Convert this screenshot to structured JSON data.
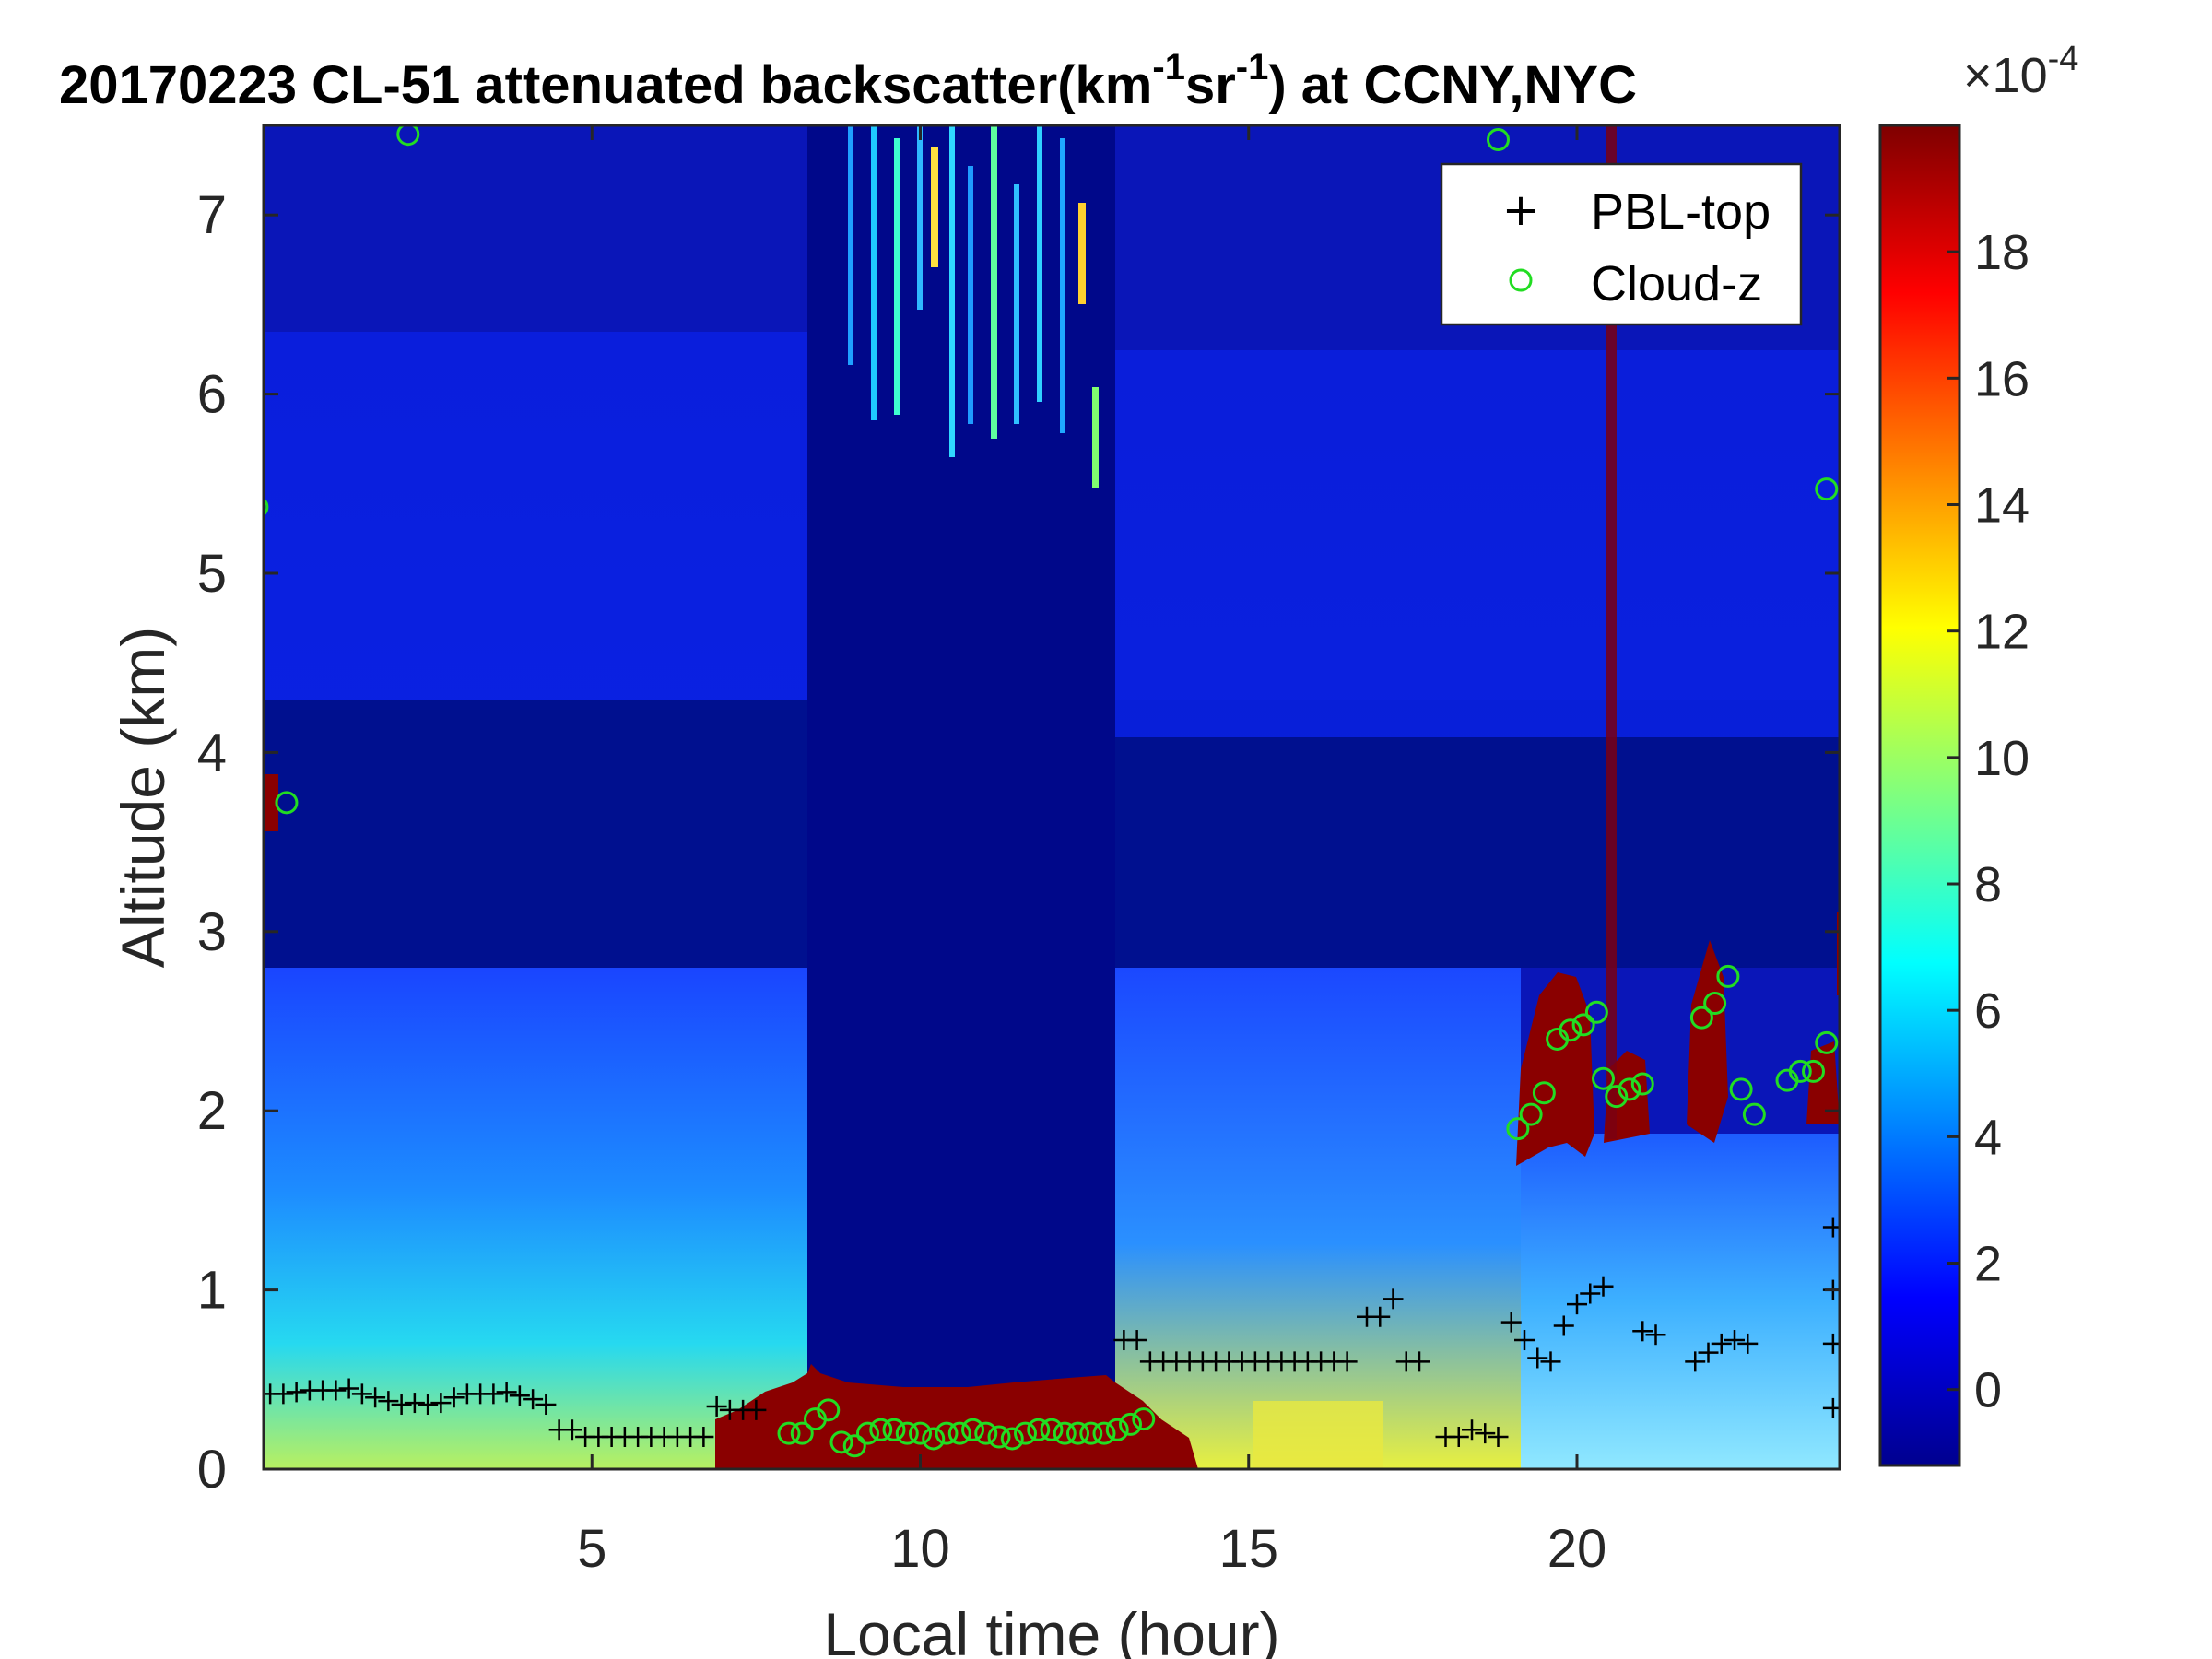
{
  "chart_data": {
    "type": "heatmap",
    "title_parts": {
      "main": "20170223  CL-51 attenuated backscatter(km",
      "sup1": "-1",
      "mid": "sr",
      "sup2": "-1",
      "end": ") at CCNY,NYC"
    },
    "xlabel": "Local time (hour)",
    "ylabel": "Altitude (km)",
    "xlim": [
      0,
      24
    ],
    "ylim": [
      0,
      7.5
    ],
    "x_ticks": [
      "5",
      "10",
      "15",
      "20"
    ],
    "y_ticks": [
      "0",
      "1",
      "2",
      "3",
      "4",
      "5",
      "6",
      "7"
    ],
    "colorbar": {
      "range": [
        -1.2,
        20
      ],
      "ticks": [
        "0",
        "2",
        "4",
        "6",
        "8",
        "10",
        "12",
        "14",
        "16",
        "18"
      ],
      "exponent_base": "10",
      "exponent": "-4"
    },
    "legend": {
      "placement": "top-right",
      "entries": [
        {
          "name": "PBL-top",
          "marker": "+",
          "color": "#000000"
        },
        {
          "name": "Cloud-z",
          "marker": "o",
          "color": "#22dd22"
        }
      ]
    },
    "series": [
      {
        "name": "PBL-top",
        "points": [
          [
            0.1,
            0.42
          ],
          [
            0.3,
            0.42
          ],
          [
            0.5,
            0.43
          ],
          [
            0.7,
            0.44
          ],
          [
            0.9,
            0.44
          ],
          [
            1.1,
            0.44
          ],
          [
            1.3,
            0.45
          ],
          [
            1.5,
            0.42
          ],
          [
            1.7,
            0.4
          ],
          [
            1.9,
            0.38
          ],
          [
            2.1,
            0.36
          ],
          [
            2.3,
            0.37
          ],
          [
            2.5,
            0.36
          ],
          [
            2.7,
            0.37
          ],
          [
            2.9,
            0.4
          ],
          [
            3.1,
            0.42
          ],
          [
            3.3,
            0.42
          ],
          [
            3.5,
            0.42
          ],
          [
            3.7,
            0.43
          ],
          [
            3.9,
            0.41
          ],
          [
            4.1,
            0.39
          ],
          [
            4.3,
            0.36
          ],
          [
            4.5,
            0.22
          ],
          [
            4.7,
            0.22
          ],
          [
            4.9,
            0.18
          ],
          [
            5.1,
            0.18
          ],
          [
            5.3,
            0.18
          ],
          [
            5.5,
            0.18
          ],
          [
            5.7,
            0.18
          ],
          [
            5.9,
            0.18
          ],
          [
            6.1,
            0.18
          ],
          [
            6.3,
            0.18
          ],
          [
            6.5,
            0.18
          ],
          [
            6.7,
            0.18
          ],
          [
            6.9,
            0.35
          ],
          [
            7.1,
            0.33
          ],
          [
            7.3,
            0.33
          ],
          [
            7.5,
            0.33
          ],
          [
            13.1,
            0.72
          ],
          [
            13.3,
            0.72
          ],
          [
            13.5,
            0.6
          ],
          [
            13.7,
            0.6
          ],
          [
            13.9,
            0.6
          ],
          [
            14.1,
            0.6
          ],
          [
            14.3,
            0.6
          ],
          [
            14.5,
            0.6
          ],
          [
            14.7,
            0.6
          ],
          [
            14.9,
            0.6
          ],
          [
            15.1,
            0.6
          ],
          [
            15.3,
            0.6
          ],
          [
            15.5,
            0.6
          ],
          [
            15.7,
            0.6
          ],
          [
            15.9,
            0.6
          ],
          [
            16.1,
            0.6
          ],
          [
            16.3,
            0.6
          ],
          [
            16.5,
            0.6
          ],
          [
            16.8,
            0.85
          ],
          [
            17.0,
            0.85
          ],
          [
            17.2,
            0.95
          ],
          [
            17.4,
            0.6
          ],
          [
            17.6,
            0.6
          ],
          [
            18.0,
            0.18
          ],
          [
            18.2,
            0.18
          ],
          [
            18.4,
            0.22
          ],
          [
            18.6,
            0.2
          ],
          [
            18.8,
            0.18
          ],
          [
            19.0,
            0.82
          ],
          [
            19.2,
            0.72
          ],
          [
            19.4,
            0.62
          ],
          [
            19.6,
            0.6
          ],
          [
            19.8,
            0.8
          ],
          [
            20.0,
            0.92
          ],
          [
            20.2,
            0.98
          ],
          [
            20.4,
            1.02
          ],
          [
            21.0,
            0.77
          ],
          [
            21.2,
            0.75
          ],
          [
            21.8,
            0.6
          ],
          [
            22.0,
            0.65
          ],
          [
            22.2,
            0.7
          ],
          [
            22.4,
            0.72
          ],
          [
            22.6,
            0.7
          ],
          [
            23.9,
            0.34
          ],
          [
            23.9,
            0.7
          ],
          [
            23.9,
            1.0
          ],
          [
            23.9,
            1.35
          ]
        ]
      },
      {
        "name": "Cloud-z",
        "points": [
          [
            0.35,
            3.72
          ],
          [
            2.2,
            7.45
          ],
          [
            18.8,
            7.42
          ],
          [
            8.0,
            0.2
          ],
          [
            8.2,
            0.2
          ],
          [
            8.4,
            0.28
          ],
          [
            8.6,
            0.33
          ],
          [
            8.8,
            0.15
          ],
          [
            9.0,
            0.13
          ],
          [
            9.2,
            0.2
          ],
          [
            9.4,
            0.22
          ],
          [
            9.6,
            0.22
          ],
          [
            9.8,
            0.2
          ],
          [
            10.0,
            0.2
          ],
          [
            10.2,
            0.17
          ],
          [
            10.4,
            0.2
          ],
          [
            10.6,
            0.2
          ],
          [
            10.8,
            0.22
          ],
          [
            11.0,
            0.2
          ],
          [
            11.2,
            0.18
          ],
          [
            11.4,
            0.17
          ],
          [
            11.6,
            0.2
          ],
          [
            11.8,
            0.22
          ],
          [
            12.0,
            0.22
          ],
          [
            12.2,
            0.2
          ],
          [
            12.4,
            0.2
          ],
          [
            12.6,
            0.2
          ],
          [
            12.8,
            0.2
          ],
          [
            13.0,
            0.22
          ],
          [
            13.2,
            0.25
          ],
          [
            13.4,
            0.28
          ],
          [
            19.1,
            1.9
          ],
          [
            19.3,
            1.98
          ],
          [
            19.5,
            2.1
          ],
          [
            19.7,
            2.4
          ],
          [
            19.9,
            2.45
          ],
          [
            20.1,
            2.48
          ],
          [
            20.3,
            2.55
          ],
          [
            20.4,
            2.18
          ],
          [
            20.6,
            2.08
          ],
          [
            20.8,
            2.12
          ],
          [
            21.0,
            2.15
          ],
          [
            21.9,
            2.52
          ],
          [
            22.1,
            2.6
          ],
          [
            22.3,
            2.75
          ],
          [
            22.5,
            2.12
          ],
          [
            22.7,
            1.98
          ],
          [
            23.2,
            2.17
          ],
          [
            23.4,
            2.22
          ],
          [
            23.6,
            2.22
          ],
          [
            23.8,
            2.38
          ],
          [
            -0.1,
            5.37
          ],
          [
            23.8,
            5.47
          ]
        ]
      }
    ]
  }
}
